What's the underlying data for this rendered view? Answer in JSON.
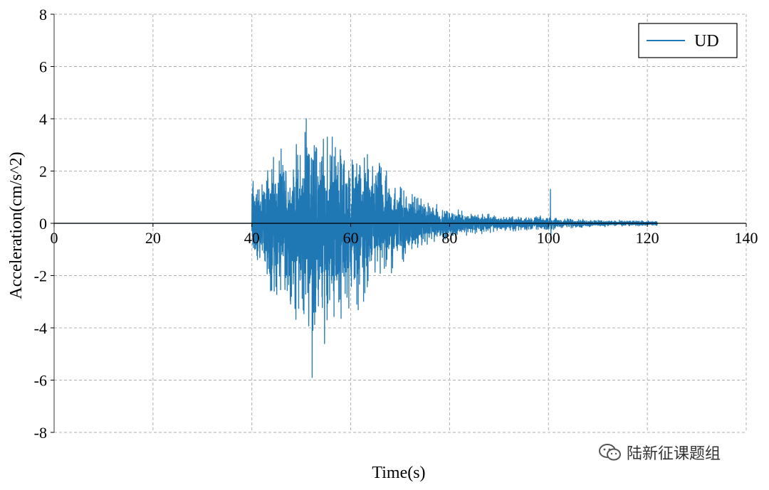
{
  "chart_data": {
    "type": "line",
    "title": "",
    "xlabel": "Time(s)",
    "ylabel": "Acceleration(cm/s^2)",
    "xlim": [
      0,
      140
    ],
    "ylim": [
      -8,
      8
    ],
    "xticks": [
      0,
      20,
      40,
      60,
      80,
      100,
      120,
      140
    ],
    "yticks": [
      -8,
      -6,
      -4,
      -2,
      0,
      2,
      4,
      6,
      8
    ],
    "grid": true,
    "grid_style": "dashed",
    "legend": {
      "position": "top-right",
      "entries": [
        "UD"
      ]
    },
    "series": [
      {
        "name": "UD",
        "color": "#1f77b4",
        "signal_start": 40,
        "signal_end": 122,
        "sampling_interval": 0.02,
        "peak_positive": {
          "x": 51,
          "y": 4.0
        },
        "peak_negative": {
          "x": 52.2,
          "y": -5.9
        },
        "secondary_spike": {
          "x": 100.4,
          "y": 1.3
        },
        "envelope": [
          {
            "x": 40,
            "y": 2.3
          },
          {
            "x": 42,
            "y": 1.8
          },
          {
            "x": 44,
            "y": 3.2
          },
          {
            "x": 48,
            "y": 2.8
          },
          {
            "x": 50,
            "y": 3.9
          },
          {
            "x": 52,
            "y": 4.0
          },
          {
            "x": 56,
            "y": 3.9
          },
          {
            "x": 60,
            "y": 3.0
          },
          {
            "x": 65,
            "y": 2.8
          },
          {
            "x": 70,
            "y": 1.8
          },
          {
            "x": 75,
            "y": 1.0
          },
          {
            "x": 80,
            "y": 0.6
          },
          {
            "x": 85,
            "y": 0.45
          },
          {
            "x": 90,
            "y": 0.35
          },
          {
            "x": 95,
            "y": 0.3
          },
          {
            "x": 100,
            "y": 0.3
          },
          {
            "x": 105,
            "y": 0.2
          },
          {
            "x": 110,
            "y": 0.15
          },
          {
            "x": 115,
            "y": 0.12
          },
          {
            "x": 122,
            "y": 0.1
          }
        ]
      }
    ]
  },
  "watermark": {
    "icon": "wechat-icon",
    "text": "陆新征课题组"
  }
}
